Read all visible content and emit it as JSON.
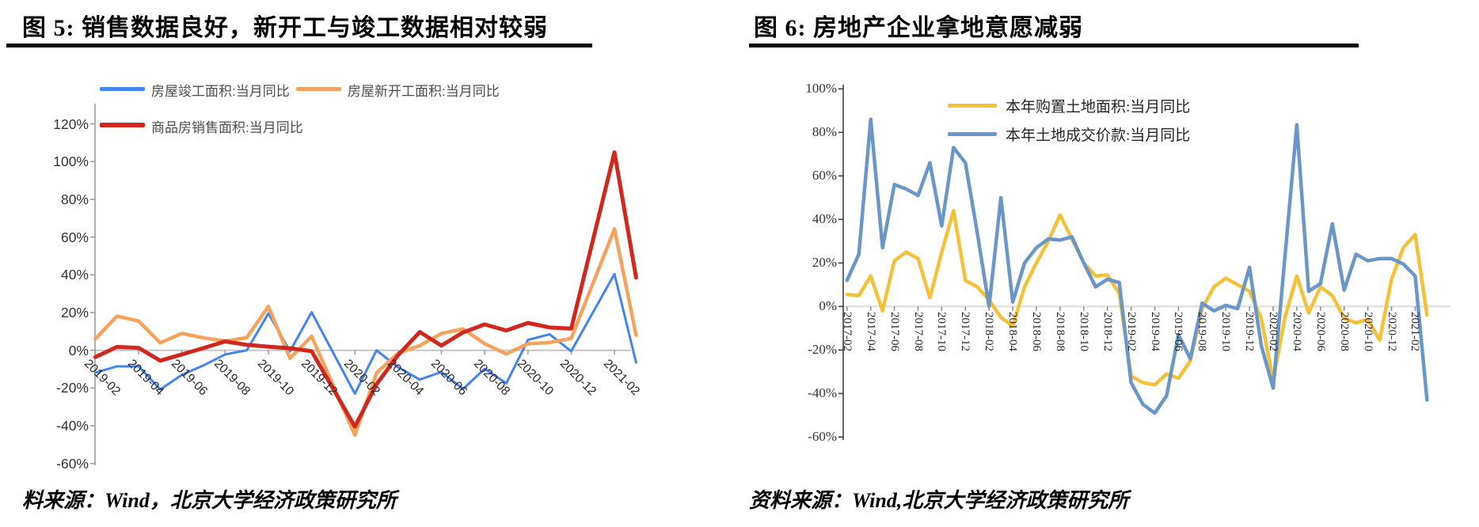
{
  "page": {
    "background": "#ffffff"
  },
  "panels": {
    "left": {
      "source": "料来源：Wind，北京大学经济政策研究所"
    },
    "right": {
      "source": "资料来源：Wind,北京大学经济政策研究所"
    }
  },
  "chart_data": [
    {
      "id": "fig5",
      "type": "line",
      "title": "图 5: 销售数据良好，新开工与竣工数据相对较弱",
      "ylim": [
        -60,
        120
      ],
      "ytick_step": 20,
      "ytick_format": "percent",
      "grid": "zero-line-only",
      "legend_position": "inside-top-left",
      "x": [
        "2019-02",
        "2019-03",
        "2019-04",
        "2019-05",
        "2019-06",
        "2019-07",
        "2019-08",
        "2019-09",
        "2019-10",
        "2019-11",
        "2019-12",
        "2020-01",
        "2020-02",
        "2020-03",
        "2020-04",
        "2020-05",
        "2020-06",
        "2020-07",
        "2020-08",
        "2020-09",
        "2020-10",
        "2020-11",
        "2020-12",
        "2021-01",
        "2021-02",
        "2021-03"
      ],
      "x_tick_labels": [
        "2019-02",
        "2019-04",
        "2019-06",
        "2019-08",
        "2019-10",
        "2019-12",
        "2020-02",
        "2020-04",
        "2020-06",
        "2020-08",
        "2020-10",
        "2020-12",
        "2021-02"
      ],
      "series": [
        {
          "name": "房屋竣工面积:当月同比",
          "color": "#4583f2",
          "values": [
            -11.9,
            -8.5,
            -8.5,
            -20.7,
            -13,
            -8,
            -2.2,
            0,
            19.5,
            -0.5,
            20.2,
            null,
            -23,
            0,
            -9,
            -15.5,
            -11.5,
            -20.5,
            -9.8,
            -17.5,
            5.5,
            8.5,
            -0.5,
            null,
            40.4,
            -6.5
          ]
        },
        {
          "name": "房屋新开工面积:当月同比",
          "color": "#f5a35c",
          "values": [
            6,
            18.1,
            15.5,
            4,
            8.9,
            6.6,
            4.9,
            6.7,
            23.2,
            -4.2,
            7.4,
            null,
            -44.9,
            -12,
            -1.5,
            2.5,
            8.9,
            11.3,
            3.5,
            -1.9,
            3.5,
            4.1,
            6.3,
            null,
            64.3,
            8
          ]
        },
        {
          "name": "商品房销售面积:当月同比",
          "color": "#d0281f",
          "values": [
            -3.6,
            1.8,
            1.3,
            -5.5,
            -2.2,
            1.2,
            4.7,
            2.9,
            1.9,
            1.1,
            -0.5,
            null,
            -40.5,
            -18,
            -2.5,
            9.7,
            2.5,
            9.5,
            13.7,
            10.5,
            14.5,
            12.1,
            11.5,
            null,
            104.9,
            38.5
          ]
        }
      ]
    },
    {
      "id": "fig6",
      "type": "line",
      "title": "图 6: 房地产企业拿地意愿减弱",
      "ylim": [
        -60,
        100
      ],
      "ytick_step": 20,
      "ytick_format": "percent",
      "grid": "zero-line-only",
      "legend_position": "inside-top-center",
      "x": [
        "2017-02",
        "2017-03",
        "2017-04",
        "2017-05",
        "2017-06",
        "2017-07",
        "2017-08",
        "2017-09",
        "2017-10",
        "2017-11",
        "2017-12",
        "2018-01",
        "2018-02",
        "2018-03",
        "2018-04",
        "2018-05",
        "2018-06",
        "2018-07",
        "2018-08",
        "2018-09",
        "2018-10",
        "2018-11",
        "2018-12",
        "2019-01",
        "2019-02",
        "2019-03",
        "2019-04",
        "2019-05",
        "2019-06",
        "2019-07",
        "2019-08",
        "2019-09",
        "2019-10",
        "2019-11",
        "2019-12",
        "2020-01",
        "2020-02",
        "2020-03",
        "2020-04",
        "2020-05",
        "2020-06",
        "2020-07",
        "2020-08",
        "2020-09",
        "2020-10",
        "2020-11",
        "2020-12",
        "2021-01",
        "2021-02",
        "2021-03"
      ],
      "x_tick_labels": [
        "2017-02",
        "2017-04",
        "2017-06",
        "2017-08",
        "2017-10",
        "2017-12",
        "2018-02",
        "2018-04",
        "2018-06",
        "2018-08",
        "2018-10",
        "2018-12",
        "2019-02",
        "2019-04",
        "2019-06",
        "2019-08",
        "2019-10",
        "2019-12",
        "2020-02",
        "2020-04",
        "2020-06",
        "2020-08",
        "2020-10",
        "2020-12",
        "2021-02"
      ],
      "series": [
        {
          "name": "本年购置土地面积:当月同比",
          "color": "#f3c13a",
          "values": [
            5.5,
            5,
            14,
            -2,
            21,
            25,
            22,
            4,
            25,
            44,
            12,
            9,
            3,
            -5,
            -9,
            9,
            20,
            30,
            42,
            31,
            20,
            14,
            14.5,
            6,
            -32,
            -35,
            -36,
            -31,
            -33,
            -25,
            -1,
            9,
            13,
            10,
            7,
            -5.5,
            -34,
            -5,
            14,
            -3,
            9,
            5,
            -5.5,
            -7.5,
            -6,
            -15.5,
            12.5,
            27,
            33,
            -4
          ]
        },
        {
          "name": "本年土地成交价款:当月同比",
          "color": "#6b97c8",
          "values": [
            12,
            24,
            86,
            27,
            56,
            54,
            51,
            66,
            37,
            73,
            66,
            34,
            0,
            50,
            2,
            20,
            27,
            31,
            30.5,
            32,
            20,
            9,
            12.5,
            11,
            -35,
            -45,
            -49,
            -41,
            -13,
            -24,
            1.5,
            -2,
            0.5,
            -1,
            18,
            -18,
            -37.5,
            23,
            83.5,
            7,
            10.5,
            38,
            7.5,
            24,
            21,
            22,
            22,
            19.5,
            14,
            -43
          ]
        }
      ]
    }
  ]
}
